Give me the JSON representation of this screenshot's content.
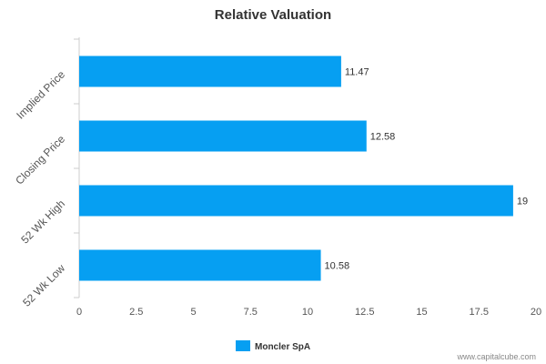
{
  "chart_data": {
    "type": "bar",
    "orientation": "horizontal",
    "title": "Relative Valuation",
    "categories": [
      "Implied Price",
      "Closing Price",
      "52 Wk High",
      "52 Wk Low"
    ],
    "series": [
      {
        "name": "Moncler SpA",
        "values": [
          11.47,
          12.58,
          19,
          10.58
        ],
        "color": "#069ff2"
      }
    ],
    "data_labels": [
      "11.47",
      "12.58",
      "19",
      "10.58"
    ],
    "xlim": [
      0,
      20
    ],
    "x_ticks": [
      "0",
      "2.5",
      "5",
      "7.5",
      "10",
      "12.5",
      "15",
      "17.5",
      "20"
    ],
    "grid": false,
    "legend_position": "bottom-center"
  },
  "footer": {
    "source_text": "www.capitalcube.com"
  }
}
